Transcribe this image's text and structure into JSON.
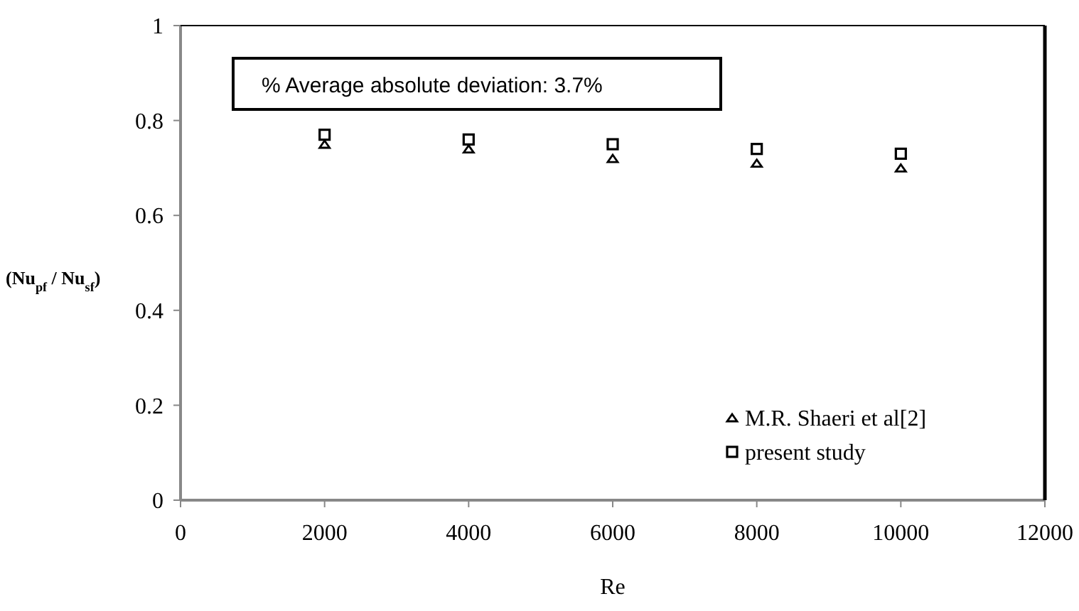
{
  "chart_data": {
    "type": "scatter",
    "xlabel": "Re",
    "ylabel": "(Nu$_{pf}$ / Nu$_{sf}$)",
    "annotations": [
      "% Average absolute deviation: 3.7%"
    ],
    "xlim": [
      0,
      12000
    ],
    "xticks": [
      0,
      2000,
      4000,
      6000,
      8000,
      10000,
      12000
    ],
    "ylim": [
      0,
      1
    ],
    "yticks": [
      0,
      0.2,
      0.4,
      0.6,
      0.8,
      1
    ],
    "grid": false,
    "legend": "bottom right",
    "series": [
      {
        "name": "M.R. Shaeri et al[2]",
        "color": "#000000",
        "marker": "triangle",
        "x": [
          2000,
          4000,
          6000,
          8000,
          10000
        ],
        "values": [
          0.75,
          0.74,
          0.72,
          0.71,
          0.7
        ]
      },
      {
        "name": "present study",
        "color": "#000000",
        "marker": "square",
        "x": [
          2000,
          4000,
          6000,
          8000,
          10000
        ],
        "values": [
          0.77,
          0.76,
          0.75,
          0.74,
          0.73
        ]
      }
    ]
  }
}
